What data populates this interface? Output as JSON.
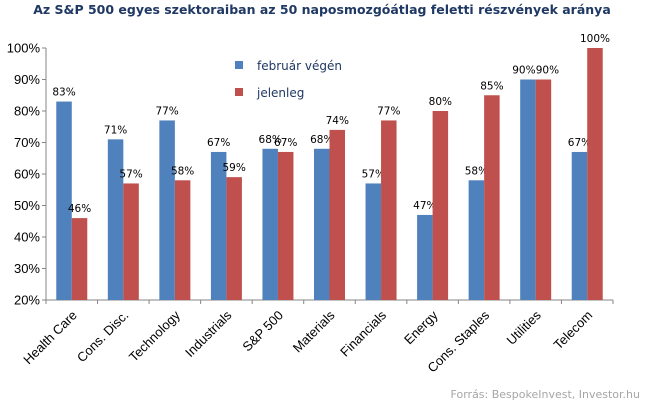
{
  "chart_data": {
    "type": "bar",
    "title": "Az S&P 500 egyes szektoraiban az 50 naposmozgóátlag feletti részvények aránya",
    "categories": [
      "Health Care",
      "Cons. Disc.",
      "Technology",
      "Industrials",
      "S&P 500",
      "Materials",
      "Financials",
      "Energy",
      "Cons. Staples",
      "Utilities",
      "Telecom"
    ],
    "series": [
      {
        "name": "február végén",
        "color": "#4f81bd",
        "values": [
          83,
          71,
          77,
          67,
          68,
          68,
          57,
          47,
          58,
          90,
          67
        ],
        "labels": [
          "83%",
          "71%",
          "77%",
          "67%",
          "68%",
          "68%",
          "57%",
          "47%",
          "58%",
          "90%",
          "67%"
        ]
      },
      {
        "name": "jelenleg",
        "color": "#c0504d",
        "values": [
          46,
          57,
          58,
          59,
          67,
          74,
          77,
          80,
          85,
          90,
          100
        ],
        "labels": [
          "46%",
          "57%",
          "58%",
          "59%",
          "67%",
          "74%",
          "77%",
          "80%",
          "85%",
          "90%",
          "100%"
        ]
      }
    ],
    "ylim": [
      20,
      100
    ],
    "yticks": [
      "20%",
      "30%",
      "40%",
      "50%",
      "60%",
      "70%",
      "80%",
      "90%",
      "100%"
    ],
    "ytick_values": [
      20,
      30,
      40,
      50,
      60,
      70,
      80,
      90,
      100
    ],
    "grid": false,
    "legend_position": "top-left inside plot",
    "xlabel": "",
    "ylabel": "",
    "source": "Forrás: BespokeInvest, Investor.hu"
  }
}
